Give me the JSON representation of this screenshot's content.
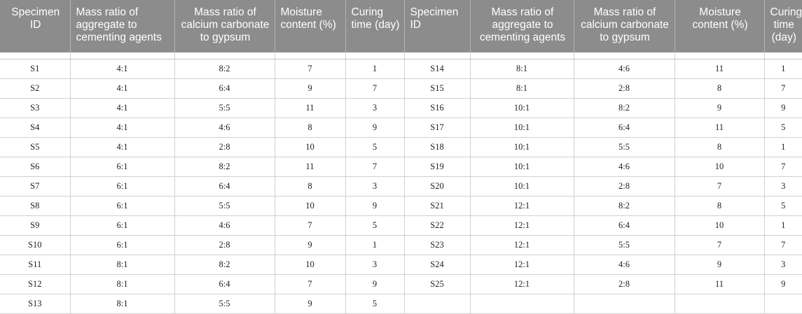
{
  "headers": [
    "Specimen ID",
    "Mass ratio of aggregate to cementing agents",
    "Mass ratio of calcium carbonate to gypsum",
    "Moisture content (%)",
    "Curing time (day)",
    "Specimen ID",
    "Mass ratio of aggregate to cementing agents",
    "Mass ratio of calcium carbonate to gypsum",
    "Moisture content (%)",
    "Curing time (day)"
  ],
  "rows": [
    [
      "S1",
      "4:1",
      "8:2",
      "7",
      "1",
      "S14",
      "8:1",
      "4:6",
      "11",
      "1"
    ],
    [
      "S2",
      "4:1",
      "6:4",
      "9",
      "7",
      "S15",
      "8:1",
      "2:8",
      "8",
      "7"
    ],
    [
      "S3",
      "4:1",
      "5:5",
      "11",
      "3",
      "S16",
      "10:1",
      "8:2",
      "9",
      "9"
    ],
    [
      "S4",
      "4:1",
      "4:6",
      "8",
      "9",
      "S17",
      "10:1",
      "6:4",
      "11",
      "5"
    ],
    [
      "S5",
      "4:1",
      "2:8",
      "10",
      "5",
      "S18",
      "10:1",
      "5:5",
      "8",
      "1"
    ],
    [
      "S6",
      "6:1",
      "8:2",
      "11",
      "7",
      "S19",
      "10:1",
      "4:6",
      "10",
      "7"
    ],
    [
      "S7",
      "6:1",
      "6:4",
      "8",
      "3",
      "S20",
      "10:1",
      "2:8",
      "7",
      "3"
    ],
    [
      "S8",
      "6:1",
      "5:5",
      "10",
      "9",
      "S21",
      "12:1",
      "8:2",
      "8",
      "5"
    ],
    [
      "S9",
      "6:1",
      "4:6",
      "7",
      "5",
      "S22",
      "12:1",
      "6:4",
      "10",
      "1"
    ],
    [
      "S10",
      "6:1",
      "2:8",
      "9",
      "1",
      "S23",
      "12:1",
      "5:5",
      "7",
      "7"
    ],
    [
      "S11",
      "8:1",
      "8:2",
      "10",
      "3",
      "S24",
      "12:1",
      "4:6",
      "9",
      "3"
    ],
    [
      "S12",
      "8:1",
      "6:4",
      "7",
      "9",
      "S25",
      "12:1",
      "2:8",
      "11",
      "9"
    ],
    [
      "S13",
      "8:1",
      "5:5",
      "9",
      "5",
      "",
      "",
      "",
      "",
      ""
    ]
  ]
}
